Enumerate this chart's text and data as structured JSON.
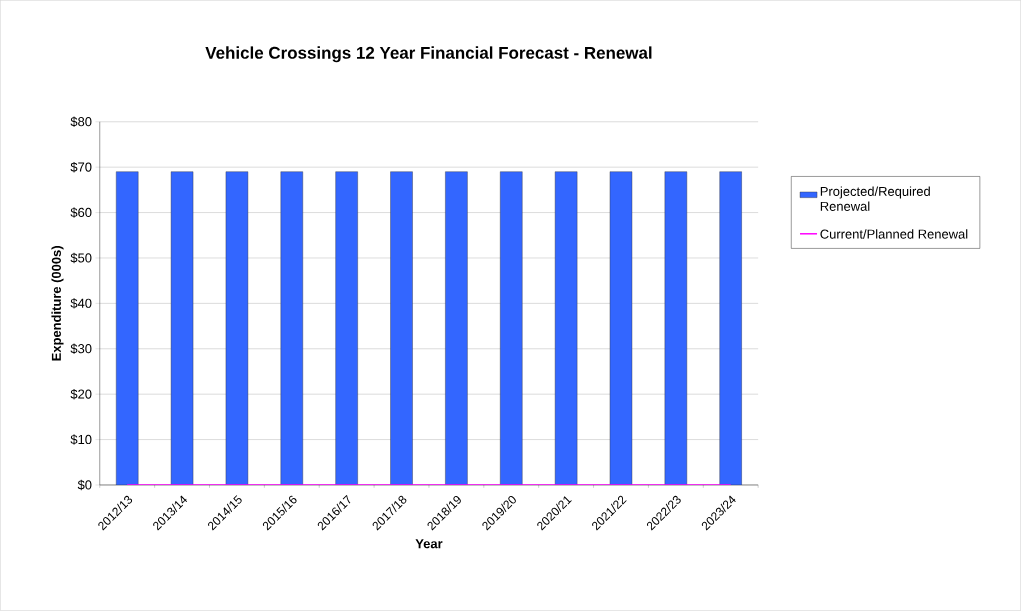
{
  "chart_data": {
    "type": "bar",
    "title": "Vehicle Crossings 12 Year Financial Forecast - Renewal",
    "xlabel": "Year",
    "ylabel": "Expenditure (000s)",
    "categories": [
      "2012/13",
      "2013/14",
      "2014/15",
      "2015/16",
      "2016/17",
      "2017/18",
      "2018/19",
      "2019/20",
      "2020/21",
      "2021/22",
      "2022/23",
      "2023/24"
    ],
    "series": [
      {
        "name": "Projected/Required Renewal",
        "color": "#3366ff",
        "values": [
          69,
          69,
          69,
          69,
          69,
          69,
          69,
          69,
          69,
          69,
          69,
          69
        ]
      },
      {
        "name": "Current/Planned Renewal",
        "type": "line",
        "color": "#ff00ff",
        "values": [
          0,
          0,
          0,
          0,
          0,
          0,
          0,
          0,
          0,
          0,
          0,
          0
        ]
      }
    ],
    "ylim": [
      0,
      80
    ],
    "yticks": [
      {
        "value": 0,
        "label": "$0"
      },
      {
        "value": 10,
        "label": "$10"
      },
      {
        "value": 20,
        "label": "$20"
      },
      {
        "value": 30,
        "label": "$30"
      },
      {
        "value": 40,
        "label": "$40"
      },
      {
        "value": 50,
        "label": "$50"
      },
      {
        "value": 60,
        "label": "$60"
      },
      {
        "value": 70,
        "label": "$70"
      },
      {
        "value": 80,
        "label": "$80"
      }
    ],
    "grid": "y",
    "legend": "right",
    "marker": "none",
    "line_style": "solid"
  }
}
